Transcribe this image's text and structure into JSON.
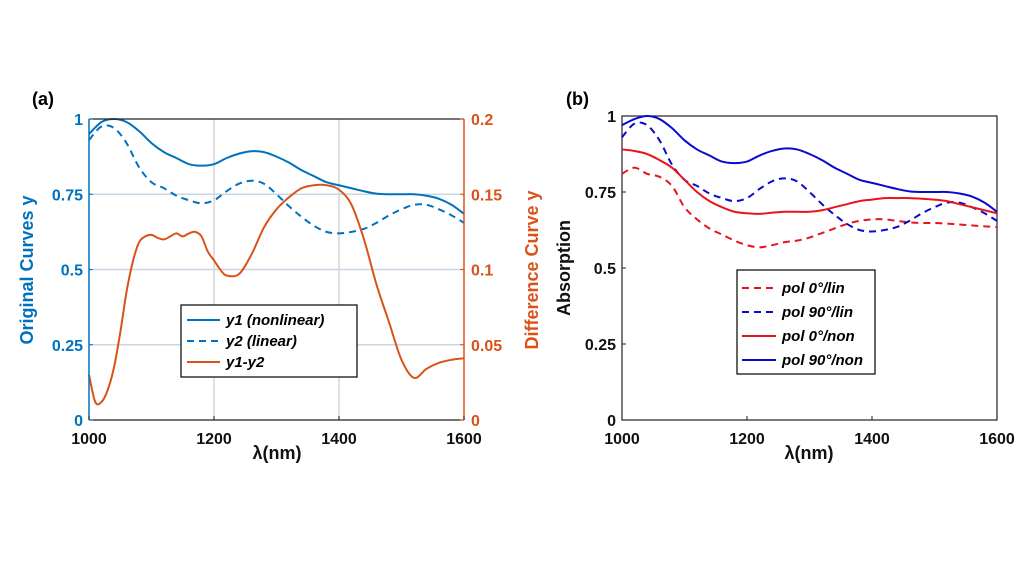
{
  "colors": {
    "left_axis": "#0072BD",
    "right_axis": "#D95319",
    "red": "#E8141B",
    "blue": "#0A0ACD",
    "grid": "#C8D7E3",
    "black": "#000000"
  },
  "chart_data": [
    {
      "panel_label": "(a)",
      "type": "line",
      "xlabel": "λ(nm)",
      "ylabel_left": "Original Curves y",
      "ylabel_right": "Difference Curve y",
      "xlim": [
        1000,
        1600
      ],
      "ylim_left": [
        0,
        1
      ],
      "ylim_right": [
        0,
        0.2
      ],
      "xticks": [
        "1000",
        "1200",
        "1400",
        "1600"
      ],
      "yticks_left": [
        "0",
        "0.25",
        "0.5",
        "0.75",
        "1"
      ],
      "yticks_right": [
        "0",
        "0.05",
        "0.1",
        "0.15",
        "0.2"
      ],
      "grid": true,
      "legend_position": "center",
      "legend": [
        "y1 (nonlinear)",
        "y2 (linear)",
        "y1-y2"
      ],
      "series": [
        {
          "name": "y1 (nonlinear)",
          "axis": "left",
          "style": "solid",
          "color": "left_axis",
          "x": [
            1000,
            1020,
            1040,
            1060,
            1080,
            1100,
            1120,
            1140,
            1160,
            1180,
            1200,
            1220,
            1240,
            1260,
            1280,
            1300,
            1320,
            1340,
            1360,
            1380,
            1400,
            1420,
            1440,
            1460,
            1480,
            1500,
            1520,
            1540,
            1560,
            1580,
            1600
          ],
          "y": [
            0.95,
            0.99,
            1.0,
            0.99,
            0.96,
            0.92,
            0.89,
            0.87,
            0.85,
            0.845,
            0.85,
            0.87,
            0.885,
            0.893,
            0.89,
            0.875,
            0.855,
            0.83,
            0.81,
            0.79,
            0.78,
            0.77,
            0.76,
            0.752,
            0.75,
            0.75,
            0.75,
            0.745,
            0.735,
            0.715,
            0.685
          ]
        },
        {
          "name": "y2 (linear)",
          "axis": "left",
          "style": "dashed",
          "color": "left_axis",
          "x": [
            1000,
            1020,
            1040,
            1060,
            1080,
            1100,
            1120,
            1140,
            1160,
            1180,
            1200,
            1220,
            1240,
            1260,
            1280,
            1300,
            1320,
            1340,
            1360,
            1380,
            1400,
            1420,
            1440,
            1460,
            1480,
            1500,
            1520,
            1540,
            1560,
            1580,
            1600
          ],
          "y": [
            0.93,
            0.975,
            0.97,
            0.92,
            0.84,
            0.79,
            0.77,
            0.745,
            0.73,
            0.72,
            0.73,
            0.76,
            0.785,
            0.795,
            0.785,
            0.75,
            0.71,
            0.675,
            0.645,
            0.625,
            0.62,
            0.625,
            0.635,
            0.655,
            0.68,
            0.7,
            0.715,
            0.715,
            0.7,
            0.68,
            0.655
          ]
        },
        {
          "name": "y1-y2",
          "axis": "right",
          "style": "solid",
          "color": "right_axis",
          "x": [
            1000,
            1010,
            1020,
            1030,
            1040,
            1050,
            1060,
            1070,
            1080,
            1090,
            1100,
            1110,
            1120,
            1130,
            1140,
            1150,
            1160,
            1170,
            1180,
            1190,
            1200,
            1210,
            1220,
            1240,
            1260,
            1280,
            1300,
            1320,
            1340,
            1360,
            1380,
            1400,
            1420,
            1440,
            1460,
            1480,
            1500,
            1520,
            1540,
            1560,
            1580,
            1600
          ],
          "y": [
            0.03,
            0.012,
            0.012,
            0.02,
            0.035,
            0.058,
            0.085,
            0.105,
            0.118,
            0.122,
            0.123,
            0.121,
            0.12,
            0.122,
            0.124,
            0.122,
            0.124,
            0.125,
            0.122,
            0.112,
            0.106,
            0.1,
            0.096,
            0.097,
            0.11,
            0.128,
            0.14,
            0.148,
            0.154,
            0.156,
            0.156,
            0.153,
            0.143,
            0.12,
            0.09,
            0.065,
            0.04,
            0.028,
            0.034,
            0.038,
            0.04,
            0.041
          ]
        }
      ]
    },
    {
      "panel_label": "(b)",
      "type": "line",
      "xlabel": "λ(nm)",
      "ylabel": "Absorption",
      "xlim": [
        1000,
        1600
      ],
      "ylim": [
        0,
        1
      ],
      "xticks": [
        "1000",
        "1200",
        "1400",
        "1600"
      ],
      "yticks": [
        "0",
        "0.25",
        "0.5",
        "0.75",
        "1"
      ],
      "grid": false,
      "legend_position": "center",
      "legend": [
        "pol 0°/lin",
        "pol 90°/lin",
        "pol 0°/non",
        "pol 90°/non"
      ],
      "series": [
        {
          "name": "pol 0°/lin",
          "style": "dashed",
          "color": "red",
          "x": [
            1000,
            1020,
            1040,
            1060,
            1080,
            1100,
            1120,
            1140,
            1160,
            1180,
            1200,
            1220,
            1240,
            1260,
            1280,
            1300,
            1320,
            1340,
            1360,
            1380,
            1400,
            1420,
            1440,
            1460,
            1480,
            1500,
            1520,
            1540,
            1560,
            1580,
            1600
          ],
          "y": [
            0.81,
            0.83,
            0.81,
            0.8,
            0.77,
            0.7,
            0.66,
            0.63,
            0.61,
            0.59,
            0.575,
            0.568,
            0.575,
            0.585,
            0.59,
            0.6,
            0.615,
            0.63,
            0.645,
            0.655,
            0.66,
            0.66,
            0.655,
            0.65,
            0.648,
            0.648,
            0.646,
            0.643,
            0.64,
            0.637,
            0.635
          ]
        },
        {
          "name": "pol 90°/lin",
          "style": "dashed",
          "color": "blue",
          "x": [
            1000,
            1020,
            1040,
            1060,
            1080,
            1100,
            1120,
            1140,
            1160,
            1180,
            1200,
            1220,
            1240,
            1260,
            1280,
            1300,
            1320,
            1340,
            1360,
            1380,
            1400,
            1420,
            1440,
            1460,
            1480,
            1500,
            1520,
            1540,
            1560,
            1580,
            1600
          ],
          "y": [
            0.93,
            0.975,
            0.97,
            0.92,
            0.84,
            0.79,
            0.77,
            0.745,
            0.73,
            0.72,
            0.73,
            0.76,
            0.785,
            0.795,
            0.785,
            0.75,
            0.71,
            0.675,
            0.645,
            0.625,
            0.62,
            0.625,
            0.635,
            0.655,
            0.68,
            0.7,
            0.715,
            0.715,
            0.7,
            0.68,
            0.655
          ]
        },
        {
          "name": "pol 0°/non",
          "style": "solid",
          "color": "red",
          "x": [
            1000,
            1020,
            1040,
            1060,
            1080,
            1100,
            1120,
            1140,
            1160,
            1180,
            1200,
            1220,
            1240,
            1260,
            1280,
            1300,
            1320,
            1340,
            1360,
            1380,
            1400,
            1420,
            1440,
            1460,
            1480,
            1500,
            1520,
            1540,
            1560,
            1580,
            1600
          ],
          "y": [
            0.89,
            0.885,
            0.875,
            0.855,
            0.83,
            0.79,
            0.75,
            0.72,
            0.7,
            0.685,
            0.68,
            0.678,
            0.682,
            0.685,
            0.685,
            0.685,
            0.69,
            0.7,
            0.71,
            0.72,
            0.725,
            0.73,
            0.73,
            0.73,
            0.728,
            0.725,
            0.72,
            0.71,
            0.7,
            0.69,
            0.68
          ]
        },
        {
          "name": "pol 90°/non",
          "style": "solid",
          "color": "blue",
          "x": [
            1000,
            1020,
            1040,
            1060,
            1080,
            1100,
            1120,
            1140,
            1160,
            1180,
            1200,
            1220,
            1240,
            1260,
            1280,
            1300,
            1320,
            1340,
            1360,
            1380,
            1400,
            1420,
            1440,
            1460,
            1480,
            1500,
            1520,
            1540,
            1560,
            1580,
            1600
          ],
          "y": [
            0.97,
            0.99,
            1.0,
            0.99,
            0.96,
            0.92,
            0.89,
            0.87,
            0.85,
            0.845,
            0.85,
            0.87,
            0.885,
            0.893,
            0.89,
            0.875,
            0.855,
            0.83,
            0.81,
            0.79,
            0.78,
            0.77,
            0.76,
            0.752,
            0.75,
            0.75,
            0.75,
            0.745,
            0.735,
            0.715,
            0.685
          ]
        }
      ]
    }
  ]
}
